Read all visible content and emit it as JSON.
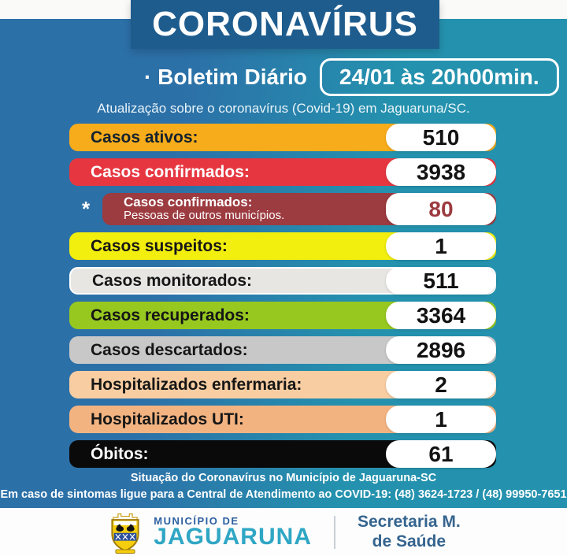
{
  "header": {
    "title": "CORONAVÍRUS",
    "bullet": "·",
    "bulletin_label": "· Boletim Diário",
    "datetime": "24/01 às 20h00min.",
    "subtitle": "Atualização sobre o coronavírus (Covid-19) em Jaguaruna/SC."
  },
  "stats": {
    "rows": [
      {
        "label": "Casos ativos:",
        "value": "510",
        "bar_color": "#F7AC1B",
        "label_color": "#14222E",
        "value_color": "#121212"
      },
      {
        "label": "Casos confirmados:",
        "value": "3938",
        "bar_color": "#E63740",
        "label_color": "#FFFFFF",
        "value_color": "#121212"
      },
      {
        "label": "Casos confirmados:",
        "sublabel": "Pessoas de outros municípios.",
        "value": "80",
        "bar_color": "#9C3B40",
        "label_color": "#FFFFFF",
        "value_color": "#9C3B40",
        "marker": "*"
      },
      {
        "label": "Casos suspeitos:",
        "value": "1",
        "bar_color": "#F2EE0D",
        "label_color": "#161616",
        "value_color": "#121212"
      },
      {
        "label": "Casos monitorados:",
        "value": "511",
        "bar_color": "#E7E6E3",
        "label_color": "#161616",
        "value_color": "#121212",
        "bar_border": "#FFFFFF"
      },
      {
        "label": "Casos recuperados:",
        "value": "3364",
        "bar_color": "#97C81F",
        "label_color": "#161616",
        "value_color": "#121212"
      },
      {
        "label": "Casos descartados:",
        "value": "2896",
        "bar_color": "#C8C8C8",
        "label_color": "#161616",
        "value_color": "#121212"
      },
      {
        "label": "Hospitalizados enfermaria:",
        "value": "2",
        "bar_color": "#F8CDA2",
        "label_color": "#161616",
        "value_color": "#121212"
      },
      {
        "label": "Hospitalizados UTI:",
        "value": "1",
        "bar_color": "#F3B381",
        "label_color": "#161616",
        "value_color": "#121212"
      },
      {
        "label": "Óbitos:",
        "value": "61",
        "bar_color": "#0A0A0A",
        "label_color": "#FFFFFF",
        "value_color": "#121212"
      }
    ]
  },
  "footer": {
    "line1": "Situação do Coronavírus no Município de Jaguaruna-SC",
    "line2": "Em caso de sintomas ligue para a Central de Atendimento ao COVID-19: (48) 3624-1723 / (48) 99950-7651"
  },
  "brand": {
    "crest_icon": "jaguaruna-coat-of-arms",
    "municipality_label": "MUNICÍPIO DE",
    "municipality_name": "JAGUARUNA",
    "department_line1": "Secretaria M.",
    "department_line2": "de Saúde"
  },
  "colors": {
    "bg_left": "#2C70A8",
    "bg_right": "#2492AE",
    "banner": "#1E5C8E",
    "brand_blue": "#2C5FA0",
    "brand_teal": "#2FA6C4",
    "department_blue": "#35648F"
  }
}
